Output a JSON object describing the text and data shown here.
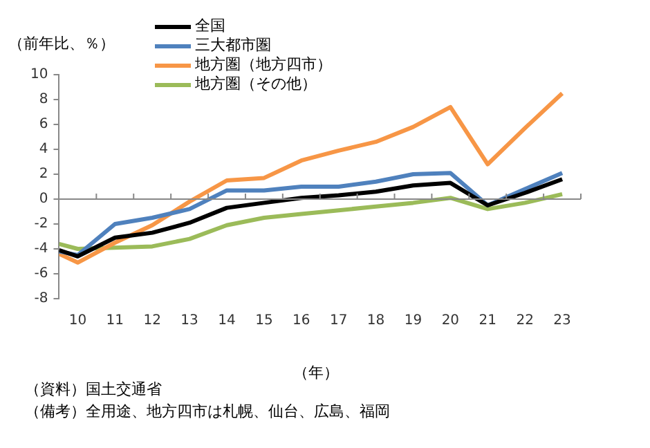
{
  "chart_data": {
    "type": "line",
    "ylabel": "（前年比、％）",
    "xlabel": "（年）",
    "x": [
      9.5,
      10,
      11,
      12,
      13,
      14,
      15,
      16,
      17,
      18,
      19,
      20,
      21,
      22,
      23
    ],
    "xlim": [
      9.5,
      23.5
    ],
    "xticks": [
      10,
      11,
      12,
      13,
      14,
      15,
      16,
      17,
      18,
      19,
      20,
      21,
      22,
      23
    ],
    "ylim": [
      -8,
      10
    ],
    "yticks": [
      -8,
      -6,
      -4,
      -2,
      0,
      2,
      4,
      6,
      8,
      10
    ],
    "legend": "top left",
    "marker": "none",
    "line_style": "solid",
    "series": [
      {
        "name": "全国",
        "color": "#000000",
        "values": [
          -4.1,
          -4.6,
          -3.1,
          -2.7,
          -1.9,
          -0.7,
          -0.3,
          0.1,
          0.3,
          0.6,
          1.1,
          1.3,
          -0.5,
          0.5,
          1.6
        ]
      },
      {
        "name": "三大都市圏",
        "color": "#4f81bd",
        "values": [
          -4.2,
          -4.5,
          -2.0,
          -1.5,
          -0.8,
          0.7,
          0.7,
          1.0,
          1.0,
          1.4,
          2.0,
          2.1,
          -0.5,
          0.8,
          2.1
        ]
      },
      {
        "name": "地方圏（地方四市）",
        "color": "#f79646",
        "values": [
          -4.4,
          -5.1,
          -3.5,
          -2.1,
          -0.2,
          1.5,
          1.7,
          3.1,
          3.9,
          4.6,
          5.8,
          7.4,
          2.8,
          5.7,
          8.5
        ]
      },
      {
        "name": "地方圏（その他）",
        "color": "#9bbb59",
        "values": [
          -3.6,
          -4.0,
          -3.9,
          -3.8,
          -3.2,
          -2.1,
          -1.5,
          -1.2,
          -0.9,
          -0.6,
          -0.3,
          0.1,
          -0.8,
          -0.3,
          0.4
        ]
      }
    ],
    "annotations": [
      "（資料）国土交通省",
      "（備考）全用途、地方四市は札幌、仙台、広島、福岡"
    ]
  }
}
